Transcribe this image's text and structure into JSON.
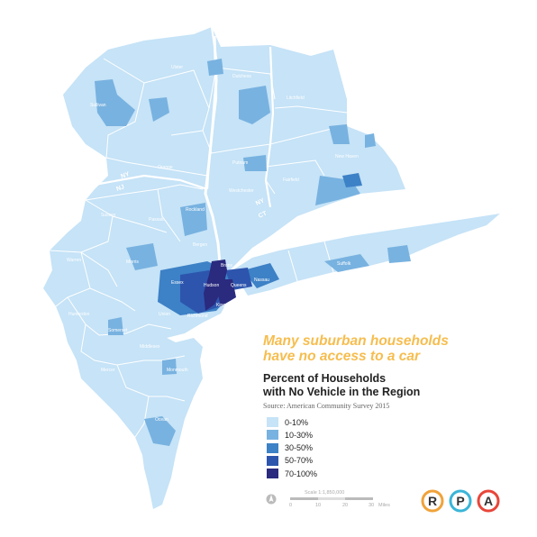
{
  "headline": [
    "Many suburban households",
    "have no access to a car"
  ],
  "legend": {
    "title": [
      "Percent of Households",
      "with No Vehicle in the Region"
    ],
    "source": "Source: American Community Survey 2015",
    "items": [
      {
        "label": "0-10%",
        "color": "#c6e3f7"
      },
      {
        "label": "10-30%",
        "color": "#78b2e0"
      },
      {
        "label": "30-50%",
        "color": "#3d81c6"
      },
      {
        "label": "50-70%",
        "color": "#2d55ad"
      },
      {
        "label": "70-100%",
        "color": "#2a2a7e"
      }
    ]
  },
  "scale": {
    "title": "Scale 1:1,850,000",
    "ticks": [
      "0",
      "10",
      "20",
      "30"
    ],
    "unit": "Miles"
  },
  "logo": {
    "letters": [
      "R",
      "P",
      "A"
    ],
    "colors": [
      "#f0a33a",
      "#3bb5d8",
      "#e8463a"
    ]
  },
  "map_labels": {
    "counties": [
      "Sullivan",
      "Ulster",
      "Dutchess",
      "Litchfield",
      "Orange",
      "Putnam",
      "New Haven",
      "Fairfield",
      "Westchester",
      "Rockland",
      "Sussex",
      "Passaic",
      "Bergen",
      "Bronx",
      "Warren",
      "Morris",
      "Essex",
      "Hunterdon",
      "Somerset",
      "Middlesex",
      "Union",
      "Mercer",
      "Monmouth",
      "Ocean",
      "Suffolk",
      "Nassau",
      "Kings",
      "Queens",
      "Hudson",
      "Richmond"
    ],
    "states": [
      "NY",
      "NJ",
      "NY",
      "CT"
    ]
  },
  "colors": {
    "land": "#c6e3f7",
    "border": "#ffffff",
    "water": "#ffffff"
  }
}
